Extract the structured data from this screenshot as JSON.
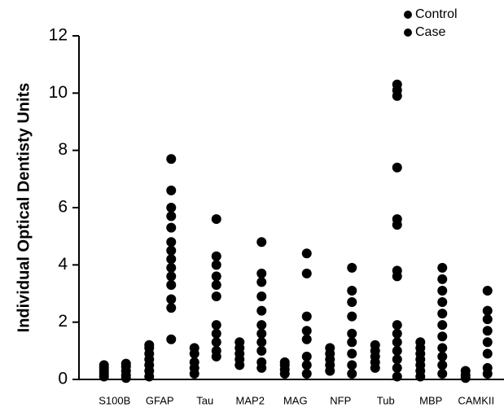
{
  "chart_data": {
    "type": "strip",
    "y_label": "Individual Optical Dentisty Units",
    "categories": [
      "S100B",
      "GFAP",
      "Tau",
      "MAP2",
      "MAG",
      "NFP",
      "Tub",
      "MBP",
      "CAMKII"
    ],
    "series": [
      {
        "name": "Control",
        "color": "#000000",
        "values": [
          [
            0.1,
            0.2,
            0.3,
            0.4,
            0.5
          ],
          [
            0.1,
            0.3,
            0.5,
            0.7,
            0.9,
            1.1,
            1.2
          ],
          [
            0.2,
            0.4,
            0.6,
            0.9,
            1.1
          ],
          [
            0.5,
            0.7,
            0.9,
            1.1,
            1.3
          ],
          [
            0.2,
            0.35,
            0.5,
            0.6
          ],
          [
            0.3,
            0.5,
            0.7,
            0.9,
            1.1
          ],
          [
            0.4,
            0.6,
            0.8,
            1.0,
            1.2
          ],
          [
            0.1,
            0.3,
            0.5,
            0.7,
            0.9,
            1.1,
            1.3
          ],
          [
            0.05,
            0.15,
            0.3
          ]
        ]
      },
      {
        "name": "Case",
        "color": "#000000",
        "values": [
          [
            0.05,
            0.15,
            0.3,
            0.45,
            0.55
          ],
          [
            1.4,
            2.5,
            2.8,
            3.3,
            3.6,
            3.9,
            4.2,
            4.5,
            4.8,
            5.3,
            5.7,
            6.0,
            6.6,
            7.7
          ],
          [
            0.8,
            1.0,
            1.3,
            1.6,
            1.9,
            2.9,
            3.3,
            3.6,
            4.0,
            4.3,
            5.6
          ],
          [
            0.4,
            0.6,
            1.0,
            1.3,
            1.6,
            1.9,
            2.4,
            2.9,
            3.4,
            3.7,
            4.8
          ],
          [
            0.2,
            0.5,
            0.8,
            1.4,
            1.7,
            2.2,
            3.7,
            4.4
          ],
          [
            0.2,
            0.5,
            0.9,
            1.3,
            1.6,
            2.2,
            2.7,
            3.1,
            3.9
          ],
          [
            0.1,
            0.4,
            0.7,
            1.0,
            1.3,
            1.6,
            1.9,
            3.6,
            3.8,
            5.4,
            5.6,
            7.4,
            9.9,
            10.1,
            10.3
          ],
          [
            0.2,
            0.5,
            0.8,
            1.1,
            1.5,
            1.9,
            2.3,
            2.7,
            3.1,
            3.5,
            3.9
          ],
          [
            0.2,
            0.4,
            0.9,
            1.3,
            1.7,
            2.1,
            2.4,
            3.1
          ]
        ]
      }
    ],
    "ylim": [
      0,
      12
    ],
    "yticks": [
      0,
      2,
      4,
      6,
      8,
      10,
      12
    ],
    "grid": false,
    "legend": "top-right"
  }
}
